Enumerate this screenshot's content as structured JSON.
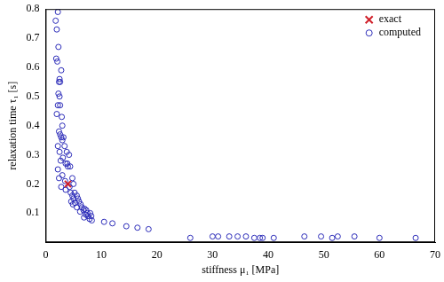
{
  "chart_data": {
    "type": "scatter",
    "x_label": "stiffness μ₁ [MPa]",
    "y_label": "relaxation time τ₁ [s]",
    "xlim": [
      0,
      70
    ],
    "xticks": [
      0,
      10,
      20,
      30,
      40,
      50,
      60,
      70
    ],
    "ylim": [
      0,
      0.8
    ],
    "yticks": [
      0.1,
      0.2,
      0.3,
      0.4,
      0.5,
      0.6,
      0.7,
      0.8
    ],
    "grid": false,
    "legend": "upper right",
    "series": [
      {
        "name": "exact",
        "color": "#d0202a",
        "marker": "x",
        "x": [
          4.0
        ],
        "values": [
          0.2
        ]
      },
      {
        "name": "computed",
        "color": "#2b2bb8",
        "marker": "circle",
        "x": [
          2.2,
          1.8,
          2.0,
          2.3,
          1.9,
          2.1,
          2.8,
          2.5,
          2.4,
          2.6,
          2.3,
          2.5,
          2.2,
          2.6,
          2.0,
          2.9,
          3.0,
          2.4,
          2.6,
          2.8,
          3.2,
          3.0,
          2.2,
          3.4,
          2.5,
          3.8,
          4.2,
          3.1,
          2.7,
          3.6,
          3.9,
          4.0,
          4.4,
          2.2,
          3.0,
          2.4,
          4.8,
          3.5,
          5.0,
          2.8,
          4.3,
          3.6,
          4.5,
          5.2,
          5.6,
          4.8,
          5.0,
          4.6,
          5.8,
          6.0,
          5.3,
          4.9,
          6.3,
          6.5,
          5.6,
          7.0,
          6.8,
          7.3,
          6.2,
          7.5,
          7.2,
          8.0,
          7.6,
          8.2,
          6.9,
          7.9,
          8.3,
          10.5,
          12.0,
          14.5,
          16.5,
          18.5,
          26.0,
          30.0,
          31.0,
          33.0,
          34.5,
          36.0,
          37.5,
          38.5,
          39.0,
          41.0,
          46.5,
          49.5,
          51.5,
          52.5,
          55.5,
          60.0,
          66.5
        ],
        "values": [
          0.79,
          0.76,
          0.73,
          0.67,
          0.63,
          0.62,
          0.59,
          0.56,
          0.55,
          0.55,
          0.51,
          0.5,
          0.47,
          0.47,
          0.44,
          0.43,
          0.4,
          0.38,
          0.37,
          0.36,
          0.36,
          0.35,
          0.33,
          0.33,
          0.31,
          0.31,
          0.3,
          0.29,
          0.28,
          0.27,
          0.27,
          0.26,
          0.26,
          0.25,
          0.23,
          0.22,
          0.22,
          0.21,
          0.2,
          0.19,
          0.19,
          0.18,
          0.17,
          0.17,
          0.16,
          0.16,
          0.15,
          0.14,
          0.15,
          0.14,
          0.135,
          0.13,
          0.13,
          0.12,
          0.12,
          0.115,
          0.11,
          0.11,
          0.105,
          0.1,
          0.095,
          0.1,
          0.09,
          0.09,
          0.085,
          0.08,
          0.075,
          0.07,
          0.065,
          0.055,
          0.05,
          0.045,
          0.015,
          0.02,
          0.02,
          0.02,
          0.02,
          0.02,
          0.015,
          0.015,
          0.015,
          0.015,
          0.02,
          0.02,
          0.015,
          0.02,
          0.02,
          0.015,
          0.015
        ]
      }
    ]
  }
}
